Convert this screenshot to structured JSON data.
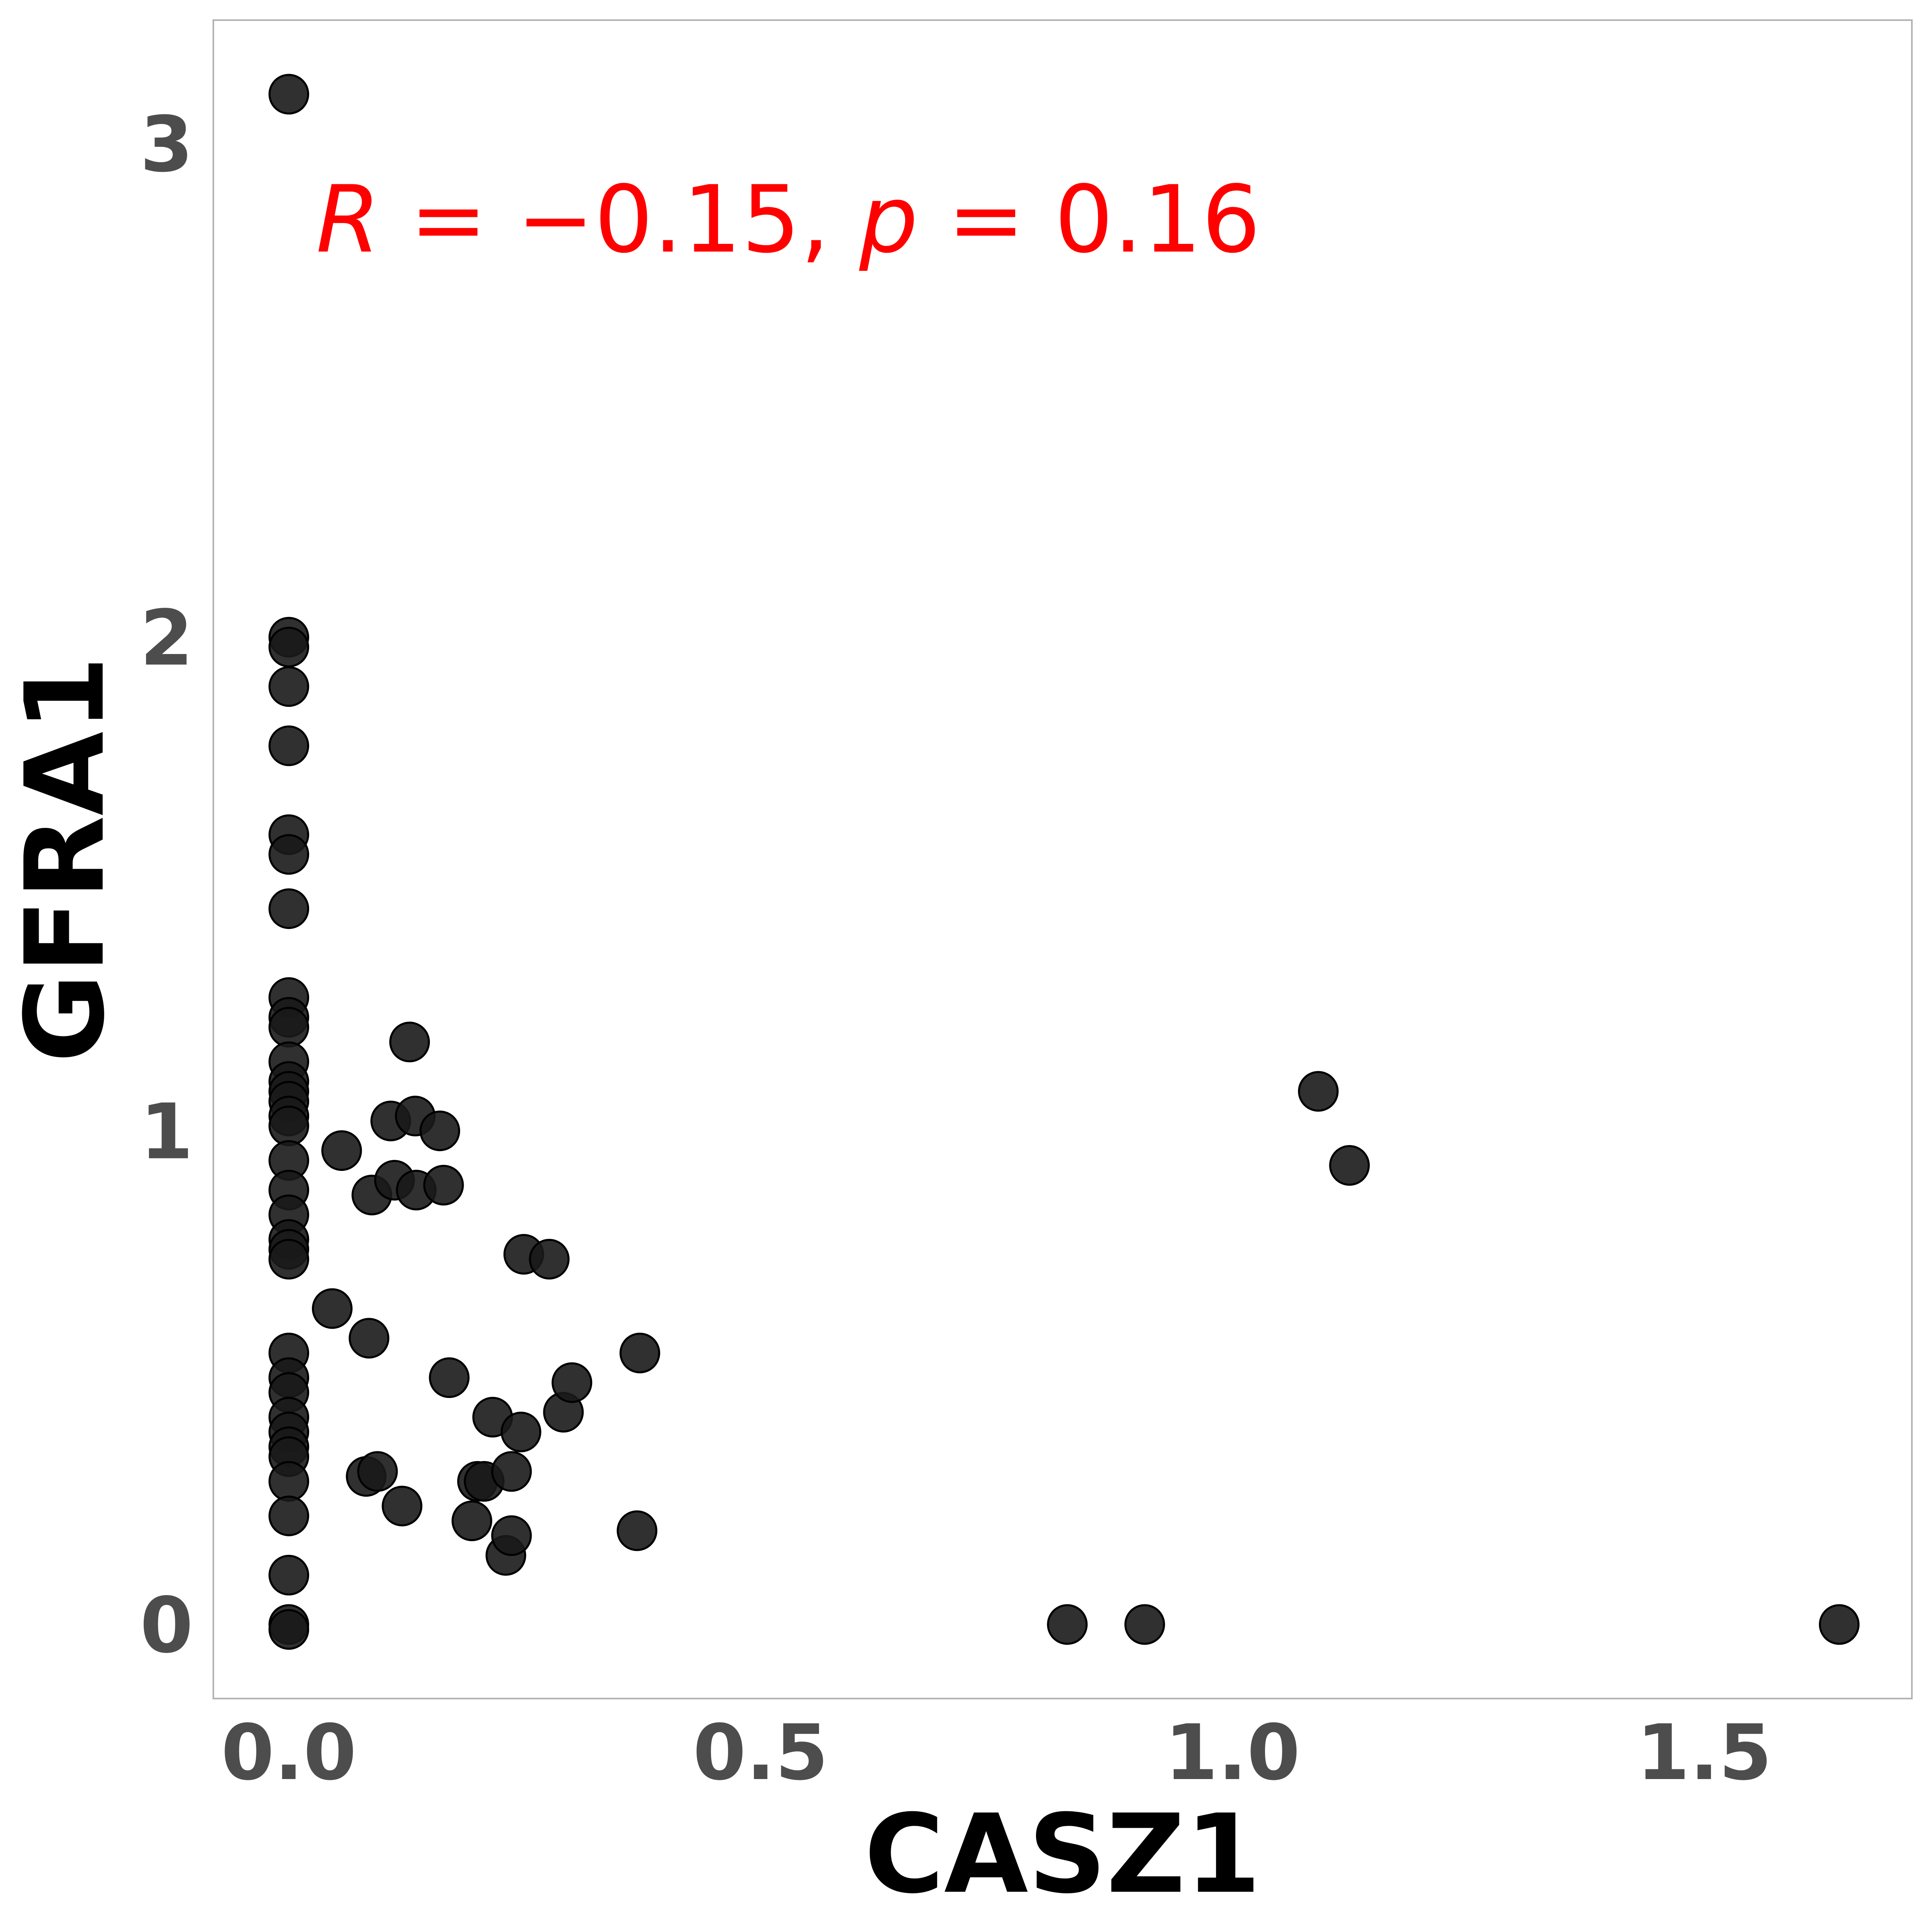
{
  "chart_data": {
    "type": "scatter",
    "title": "",
    "xlabel": "CASZ1",
    "ylabel": "GFRA1",
    "xlim": [
      -0.08,
      1.72
    ],
    "ylim": [
      -0.15,
      3.25
    ],
    "xticks": [
      0.0,
      0.5,
      1.0,
      1.5
    ],
    "xtick_labels": [
      "0.0",
      "0.5",
      "1.0",
      "1.5"
    ],
    "yticks": [
      0,
      1,
      2,
      3
    ],
    "ytick_labels": [
      "0",
      "1",
      "2",
      "3"
    ],
    "grid": false,
    "annotation": {
      "parts": [
        {
          "text": "R",
          "italic": true
        },
        {
          "text": " = −0.15, ",
          "italic": false
        },
        {
          "text": "p",
          "italic": true
        },
        {
          "text": " = 0.16",
          "italic": false
        }
      ]
    },
    "colors": {
      "annotation": "#ff0000",
      "points": "#1a1a1a",
      "frame": "#b3b3b3"
    },
    "points": [
      {
        "x": 0.0,
        "y": 3.1
      },
      {
        "x": 0.0,
        "y": 2.0
      },
      {
        "x": 0.0,
        "y": 1.98
      },
      {
        "x": 0.0,
        "y": 1.9
      },
      {
        "x": 0.0,
        "y": 1.78
      },
      {
        "x": 0.0,
        "y": 1.6
      },
      {
        "x": 0.0,
        "y": 1.56
      },
      {
        "x": 0.0,
        "y": 1.45
      },
      {
        "x": 0.0,
        "y": 1.27
      },
      {
        "x": 0.0,
        "y": 1.23
      },
      {
        "x": 0.0,
        "y": 1.21
      },
      {
        "x": 0.0,
        "y": 1.14
      },
      {
        "x": 0.0,
        "y": 1.1
      },
      {
        "x": 0.0,
        "y": 1.08
      },
      {
        "x": 0.0,
        "y": 1.06
      },
      {
        "x": 0.0,
        "y": 1.03
      },
      {
        "x": 0.0,
        "y": 1.01
      },
      {
        "x": 0.0,
        "y": 0.94
      },
      {
        "x": 0.0,
        "y": 0.88
      },
      {
        "x": 0.0,
        "y": 0.83
      },
      {
        "x": 0.0,
        "y": 0.78
      },
      {
        "x": 0.0,
        "y": 0.76
      },
      {
        "x": 0.0,
        "y": 0.74
      },
      {
        "x": 0.0,
        "y": 0.55
      },
      {
        "x": 0.0,
        "y": 0.5
      },
      {
        "x": 0.0,
        "y": 0.47
      },
      {
        "x": 0.0,
        "y": 0.42
      },
      {
        "x": 0.0,
        "y": 0.39
      },
      {
        "x": 0.0,
        "y": 0.36
      },
      {
        "x": 0.0,
        "y": 0.34
      },
      {
        "x": 0.0,
        "y": 0.29
      },
      {
        "x": 0.0,
        "y": 0.22
      },
      {
        "x": 0.0,
        "y": 0.1
      },
      {
        "x": 0.0,
        "y": 0.0
      },
      {
        "x": 0.0,
        "y": -0.01
      },
      {
        "x": 0.046,
        "y": 0.64
      },
      {
        "x": 0.056,
        "y": 0.96
      },
      {
        "x": 0.082,
        "y": 0.3
      },
      {
        "x": 0.085,
        "y": 0.58
      },
      {
        "x": 0.088,
        "y": 0.87
      },
      {
        "x": 0.094,
        "y": 0.31
      },
      {
        "x": 0.108,
        "y": 1.02
      },
      {
        "x": 0.112,
        "y": 0.9
      },
      {
        "x": 0.12,
        "y": 0.24
      },
      {
        "x": 0.128,
        "y": 1.18
      },
      {
        "x": 0.134,
        "y": 1.03
      },
      {
        "x": 0.135,
        "y": 0.88
      },
      {
        "x": 0.16,
        "y": 1.0
      },
      {
        "x": 0.164,
        "y": 0.89
      },
      {
        "x": 0.17,
        "y": 0.5
      },
      {
        "x": 0.194,
        "y": 0.21
      },
      {
        "x": 0.2,
        "y": 0.29
      },
      {
        "x": 0.207,
        "y": 0.29
      },
      {
        "x": 0.216,
        "y": 0.42
      },
      {
        "x": 0.23,
        "y": 0.14
      },
      {
        "x": 0.236,
        "y": 0.31
      },
      {
        "x": 0.236,
        "y": 0.18
      },
      {
        "x": 0.246,
        "y": 0.39
      },
      {
        "x": 0.249,
        "y": 0.75
      },
      {
        "x": 0.276,
        "y": 0.74
      },
      {
        "x": 0.291,
        "y": 0.43
      },
      {
        "x": 0.3,
        "y": 0.49
      },
      {
        "x": 0.369,
        "y": 0.19
      },
      {
        "x": 0.372,
        "y": 0.55
      },
      {
        "x": 0.825,
        "y": 0.0
      },
      {
        "x": 0.907,
        "y": 0.0
      },
      {
        "x": 1.091,
        "y": 1.08
      },
      {
        "x": 1.124,
        "y": 0.93
      },
      {
        "x": 1.643,
        "y": 0.0
      }
    ]
  }
}
